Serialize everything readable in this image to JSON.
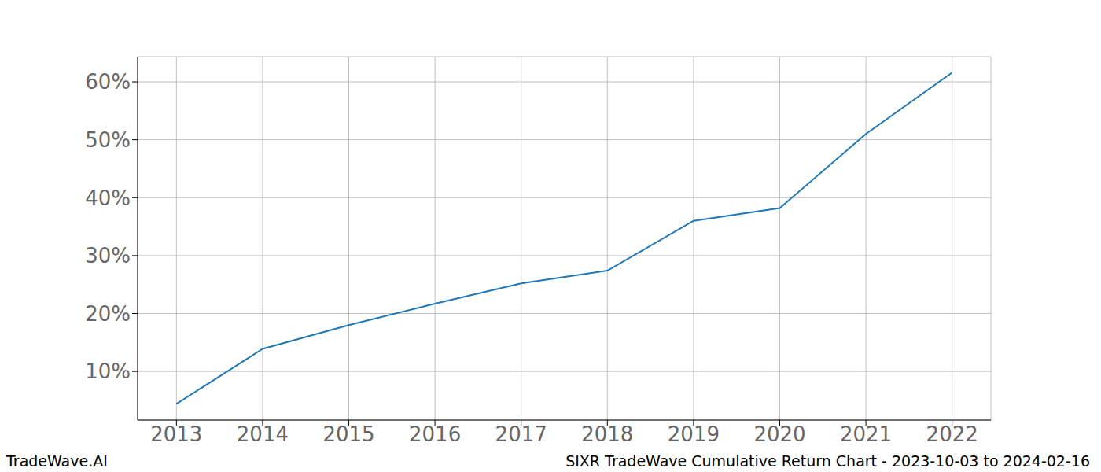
{
  "chart_data": {
    "type": "line",
    "title": "SIXR TradeWave Cumulative Return Chart - 2023-10-03 to 2024-02-16",
    "annotations": [
      "TradeWave.AI"
    ],
    "x": [
      2013,
      2014,
      2015,
      2016,
      2017,
      2018,
      2019,
      2020,
      2021,
      2022
    ],
    "values": [
      4.4,
      13.9,
      18.0,
      21.7,
      25.2,
      27.4,
      36.0,
      38.2,
      51.0,
      61.6
    ],
    "color": "#1f77b4",
    "xlim": [
      2012.55,
      2022.45
    ],
    "xticks": [
      2013,
      2014,
      2015,
      2016,
      2017,
      2018,
      2019,
      2020,
      2021,
      2022
    ],
    "ylim": [
      1.6,
      64.35
    ],
    "yticks": [
      {
        "value": 10,
        "label": "10%"
      },
      {
        "value": 20,
        "label": "20%"
      },
      {
        "value": 30,
        "label": "30%"
      },
      {
        "value": 40,
        "label": "40%"
      },
      {
        "value": 50,
        "label": "50%"
      },
      {
        "value": 60,
        "label": "60%"
      }
    ],
    "grid": true
  }
}
